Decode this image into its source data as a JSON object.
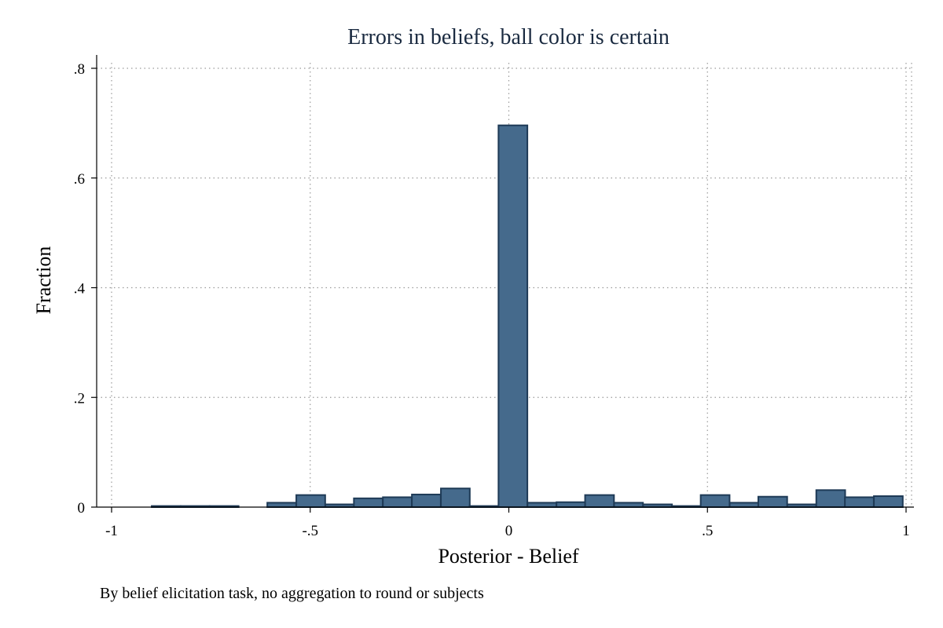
{
  "chart_data": {
    "type": "bar",
    "title": "Errors in beliefs, ball color is certain",
    "xlabel": "Posterior - Belief",
    "ylabel": "Fraction",
    "note": "By belief elicitation task, no aggregation to round or subjects",
    "xlim": [
      -1,
      1
    ],
    "ylim": [
      0,
      0.8
    ],
    "x_ticks": [
      {
        "value": -1,
        "label": "-1"
      },
      {
        "value": -0.5,
        "label": "-.5"
      },
      {
        "value": 0,
        "label": "0"
      },
      {
        "value": 0.5,
        "label": ".5"
      },
      {
        "value": 1,
        "label": "1"
      }
    ],
    "y_ticks": [
      {
        "value": 0,
        "label": "0"
      },
      {
        "value": 0.2,
        "label": ".2"
      },
      {
        "value": 0.4,
        "label": ".4"
      },
      {
        "value": 0.6,
        "label": ".6"
      },
      {
        "value": 0.8,
        "label": ".8"
      }
    ],
    "grid": true,
    "bin_width": 0.0727,
    "bins": [
      {
        "x0": -0.899,
        "value": 0.002
      },
      {
        "x0": -0.826,
        "value": 0.002
      },
      {
        "x0": -0.753,
        "value": 0.002
      },
      {
        "x0": -0.608,
        "value": 0.008
      },
      {
        "x0": -0.535,
        "value": 0.022
      },
      {
        "x0": -0.462,
        "value": 0.005
      },
      {
        "x0": -0.39,
        "value": 0.016
      },
      {
        "x0": -0.317,
        "value": 0.018
      },
      {
        "x0": -0.244,
        "value": 0.023
      },
      {
        "x0": -0.171,
        "value": 0.034
      },
      {
        "x0": -0.099,
        "value": 0.002
      },
      {
        "x0": -0.026,
        "value": 0.696
      },
      {
        "x0": 0.047,
        "value": 0.008
      },
      {
        "x0": 0.12,
        "value": 0.009
      },
      {
        "x0": 0.192,
        "value": 0.022
      },
      {
        "x0": 0.265,
        "value": 0.008
      },
      {
        "x0": 0.338,
        "value": 0.005
      },
      {
        "x0": 0.41,
        "value": 0.002
      },
      {
        "x0": 0.483,
        "value": 0.022
      },
      {
        "x0": 0.556,
        "value": 0.008
      },
      {
        "x0": 0.628,
        "value": 0.019
      },
      {
        "x0": 0.701,
        "value": 0.005
      },
      {
        "x0": 0.774,
        "value": 0.031
      },
      {
        "x0": 0.846,
        "value": 0.018
      },
      {
        "x0": 0.919,
        "value": 0.02
      }
    ],
    "colors": {
      "bar_fill": "#456a8c",
      "bar_outline": "#1e3a56",
      "title": "#1a2a40",
      "grid": "#9a9a9a"
    }
  }
}
